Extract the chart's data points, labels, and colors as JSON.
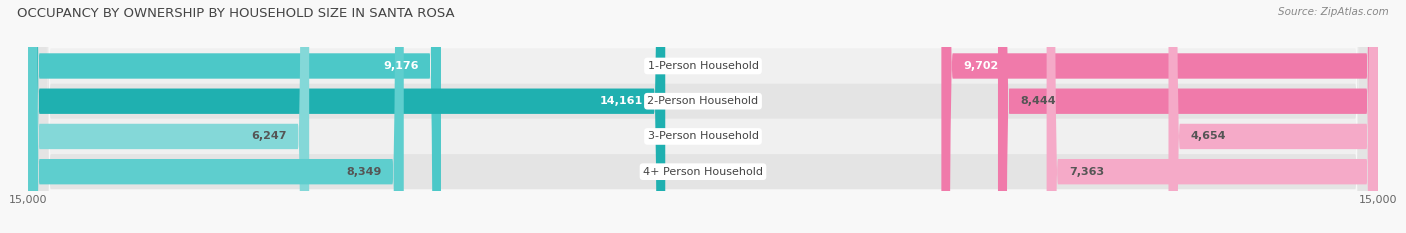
{
  "title": "OCCUPANCY BY OWNERSHIP BY HOUSEHOLD SIZE IN SANTA ROSA",
  "source": "Source: ZipAtlas.com",
  "categories": [
    "1-Person Household",
    "2-Person Household",
    "3-Person Household",
    "4+ Person Household"
  ],
  "owner_values": [
    9176,
    14161,
    6247,
    8349
  ],
  "renter_values": [
    9702,
    8444,
    4654,
    7363
  ],
  "owner_colors": [
    "#4cc8c8",
    "#1fb0b0",
    "#84d8d8",
    "#5ecece"
  ],
  "renter_colors": [
    "#f07aaa",
    "#f07aaa",
    "#f5aac8",
    "#f5aac8"
  ],
  "axis_max": 15000,
  "title_fontsize": 9.5,
  "label_fontsize": 8,
  "tick_fontsize": 8,
  "source_fontsize": 7.5,
  "category_fontsize": 8,
  "bar_height": 0.72,
  "row_bg_colors": [
    "#f0f0f0",
    "#e4e4e4"
  ],
  "background_color": "#f8f8f8",
  "row_bg_alt": [
    "#ebebeb",
    "#e0e0e0"
  ],
  "owner_label_colors": [
    "white",
    "white",
    "#555555",
    "#555555"
  ],
  "renter_label_colors": [
    "white",
    "#555555",
    "#555555",
    "#555555"
  ]
}
